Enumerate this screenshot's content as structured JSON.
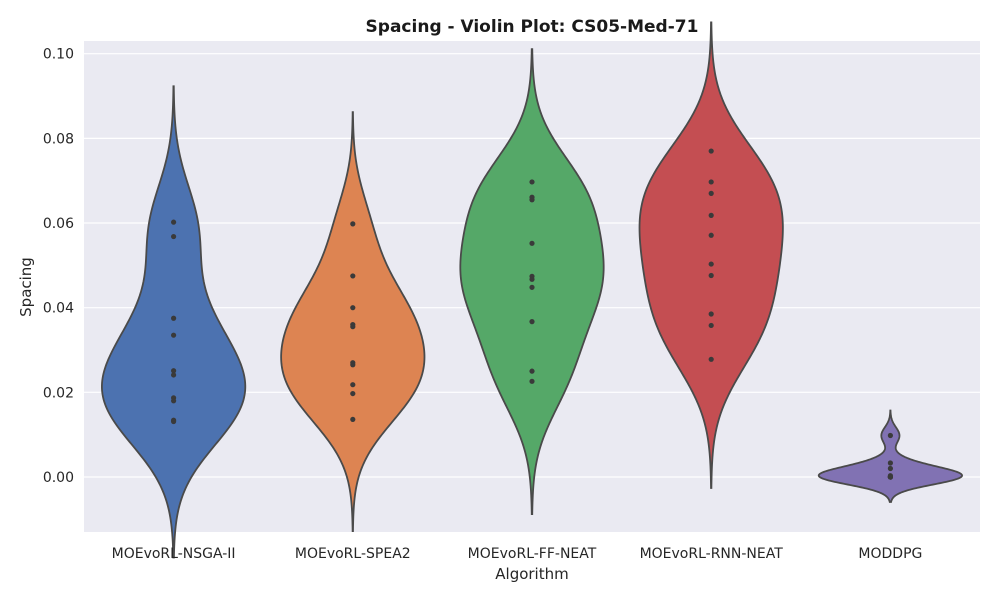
{
  "chart_data": {
    "type": "violin",
    "title": "Spacing - Violin Plot: CS05-Med-71",
    "xlabel": "Algorithm",
    "ylabel": "Spacing",
    "ylim": [
      -0.013,
      0.103
    ],
    "yticks": [
      0.0,
      0.02,
      0.04,
      0.06,
      0.08,
      0.1
    ],
    "ytick_labels": [
      "0.00",
      "0.02",
      "0.04",
      "0.06",
      "0.08",
      "0.10"
    ],
    "grid": true,
    "categories": [
      "MOEvoRL-NSGA-II",
      "MOEvoRL-SPEA2",
      "MOEvoRL-FF-NEAT",
      "MOEvoRL-RNN-NEAT",
      "MODDPG"
    ],
    "series": [
      {
        "category": "MOEvoRL-NSGA-II",
        "color": "#4c72b0",
        "points": [
          0.0602,
          0.0568,
          0.0375,
          0.0335,
          0.0251,
          0.0241,
          0.0187,
          0.018,
          0.0134,
          0.0131
        ]
      },
      {
        "category": "MOEvoRL-SPEA2",
        "color": "#dd8452",
        "points": [
          0.0598,
          0.0475,
          0.04,
          0.036,
          0.0355,
          0.027,
          0.0265,
          0.0218,
          0.0197,
          0.0136
        ]
      },
      {
        "category": "MOEvoRL-FF-NEAT",
        "color": "#55a868",
        "points": [
          0.0697,
          0.0661,
          0.0655,
          0.0552,
          0.0474,
          0.0467,
          0.0448,
          0.0367,
          0.025,
          0.0226
        ]
      },
      {
        "category": "MOEvoRL-RNN-NEAT",
        "color": "#c44e52",
        "points": [
          0.077,
          0.0697,
          0.067,
          0.0618,
          0.0571,
          0.0503,
          0.0476,
          0.0385,
          0.0358,
          0.0278
        ]
      },
      {
        "category": "MODDPG",
        "color": "#8172b3",
        "points": [
          0.0098,
          0.0033,
          0.002,
          0.0003,
          0.0,
          0.0,
          0.0,
          0.0,
          0.0,
          0.0
        ]
      }
    ]
  }
}
